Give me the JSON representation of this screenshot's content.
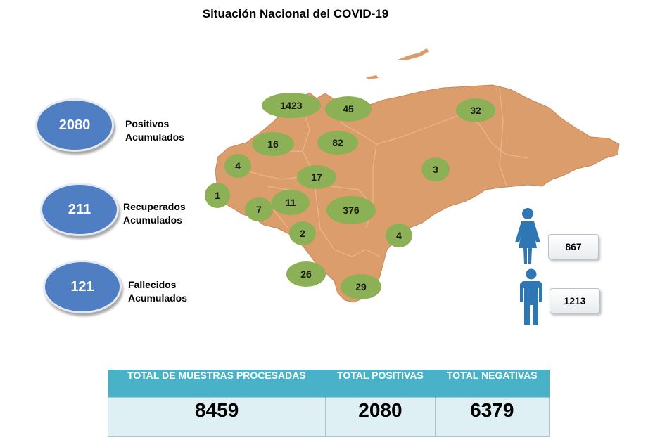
{
  "title": "Situación Nacional del COVID-19",
  "summary": [
    {
      "value": "2080",
      "label_line1": "Positivos",
      "label_line2": "Acumulados"
    },
    {
      "value": "211",
      "label_line1": "Recuperados",
      "label_line2": "Acumulados"
    },
    {
      "value": "121",
      "label_line1": "Fallecidos",
      "label_line2": "Acumulados"
    }
  ],
  "map": {
    "land_color": "#db9d6b",
    "marker_color": "#8cb055",
    "department_counts": [
      "1423",
      "45",
      "32",
      "16",
      "82",
      "4",
      "17",
      "3",
      "1",
      "11",
      "7",
      "376",
      "2",
      "4",
      "26",
      "29"
    ]
  },
  "gender": {
    "female_count": "867",
    "male_count": "1213",
    "icon_color": "#2e77b4"
  },
  "totals": {
    "headers": [
      "TOTAL DE MUESTRAS PROCESADAS",
      "TOTAL POSITIVAS",
      "TOTAL NEGATIVAS"
    ],
    "values": [
      "8459",
      "2080",
      "6379"
    ],
    "header_color": "#4ab2c8",
    "cell_color": "#dff0f5"
  }
}
